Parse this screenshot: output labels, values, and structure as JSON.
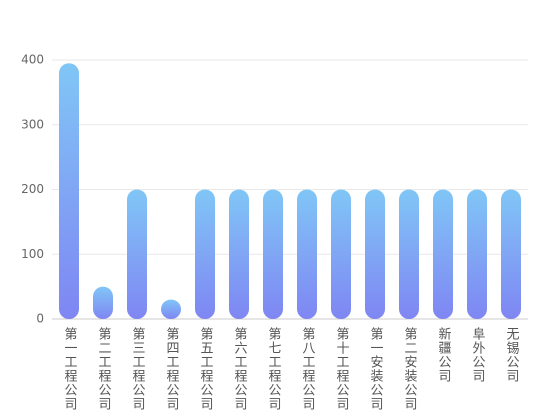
{
  "chart_data": {
    "type": "bar",
    "categories": [
      "第一工程公司",
      "第二工程公司",
      "第三工程公司",
      "第四工程公司",
      "第五工程公司",
      "第六工程公司",
      "第七工程公司",
      "第八工程公司",
      "第十工程公司",
      "第一安装公司",
      "第二安装公司",
      "新疆公司",
      "阜外公司",
      "无锡公司"
    ],
    "values": [
      395,
      50,
      200,
      30,
      200,
      200,
      200,
      200,
      200,
      200,
      200,
      200,
      200,
      200
    ],
    "color": [
      "#80c6f6",
      "#7f86f3"
    ],
    "ylim": [
      0,
      400
    ],
    "yticks": [
      0,
      100,
      200,
      300,
      400
    ],
    "grid": true
  }
}
